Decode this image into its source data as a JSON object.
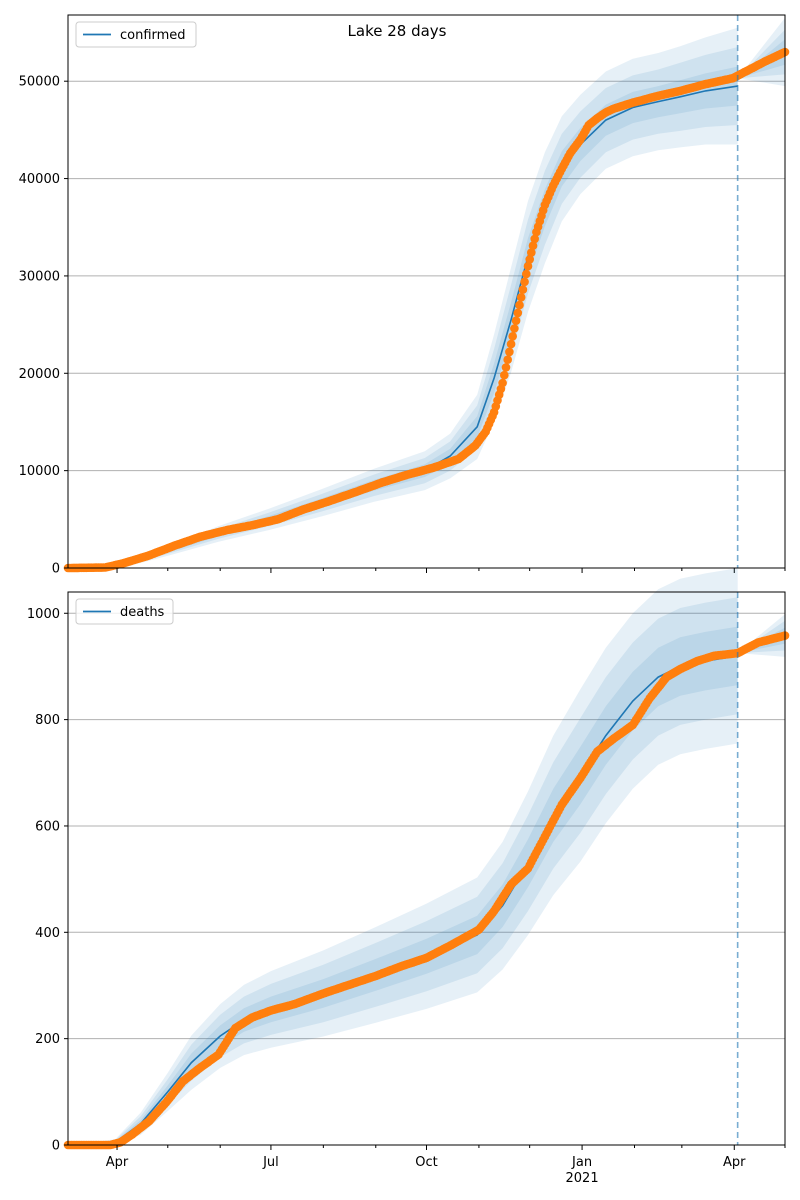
{
  "figure": {
    "title": "Lake 28 days"
  },
  "x_axis": {
    "ticks": [
      {
        "label": "Apr",
        "date": "2020-04-01"
      },
      {
        "label": "Jul",
        "date": "2020-07-01"
      },
      {
        "label": "Oct",
        "date": "2020-10-01"
      },
      {
        "label": "Jan",
        "sublabel": "2021",
        "date": "2021-01-01"
      },
      {
        "label": "Apr",
        "date": "2021-04-01"
      }
    ],
    "minor_ticks": [
      "2020-05-01",
      "2020-06-01",
      "2020-08-01",
      "2020-09-01",
      "2020-11-01",
      "2020-12-01",
      "2021-02-01",
      "2021-03-01",
      "2021-05-01"
    ],
    "range": [
      "2020-03-03",
      "2021-05-01"
    ]
  },
  "colors": {
    "model_line": "#1f77b4",
    "band": "#1f77b4",
    "observed": "#ff7f0e",
    "forecast_start_line": "#1f77b4",
    "grid": "#b0b0b0"
  },
  "chart_data": [
    {
      "type": "line",
      "legend": {
        "label": "confirmed",
        "position": "top-left"
      },
      "ylim": [
        0,
        56800
      ],
      "yticks": [
        0,
        10000,
        20000,
        30000,
        40000,
        50000
      ],
      "grid": "y",
      "forecast_start": "2021-04-03",
      "model": {
        "name": "confirmed",
        "x": [
          "2020-03-03",
          "2020-03-31",
          "2020-04-30",
          "2020-05-31",
          "2020-06-30",
          "2020-07-31",
          "2020-08-31",
          "2020-09-30",
          "2020-10-15",
          "2020-10-31",
          "2020-11-10",
          "2020-11-20",
          "2020-11-30",
          "2020-12-10",
          "2020-12-20",
          "2020-12-31",
          "2021-01-15",
          "2021-01-31",
          "2021-02-15",
          "2021-02-28",
          "2021-03-15",
          "2021-04-03"
        ],
        "y": [
          0,
          150,
          1700,
          3500,
          5000,
          6700,
          8500,
          10000,
          11500,
          14500,
          19500,
          25500,
          32000,
          37000,
          41000,
          43500,
          46000,
          47300,
          47900,
          48400,
          49000,
          49500
        ],
        "band_halfwidths": [
          [
            0,
            100,
            150,
            250,
            350,
            450,
            550,
            650,
            750,
            1100,
            1500,
            1800,
            1900,
            1900,
            1800,
            1700,
            1600,
            1600,
            1600,
            1700,
            1800,
            2000
          ],
          [
            0,
            200,
            300,
            500,
            700,
            900,
            1100,
            1300,
            1500,
            2200,
            3000,
            3600,
            3800,
            3800,
            3600,
            3400,
            3300,
            3300,
            3300,
            3500,
            3700,
            4000
          ],
          [
            0,
            300,
            500,
            800,
            1100,
            1400,
            1700,
            2000,
            2300,
            3300,
            4500,
            5400,
            5700,
            5700,
            5400,
            5100,
            5000,
            5000,
            5000,
            5200,
            5500,
            6000
          ]
        ]
      },
      "forecast": {
        "x": [
          "2021-04-03",
          "2021-05-01"
        ],
        "y": [
          50300,
          53000
        ],
        "band_halfwidths": [
          [
            0,
            1300
          ],
          [
            0,
            2300
          ],
          [
            0,
            3500
          ]
        ]
      },
      "observed": {
        "name": "observed",
        "x": [
          "2020-03-03",
          "2020-03-25",
          "2020-04-05",
          "2020-04-20",
          "2020-05-05",
          "2020-05-20",
          "2020-06-05",
          "2020-06-20",
          "2020-07-05",
          "2020-07-20",
          "2020-08-05",
          "2020-08-20",
          "2020-09-05",
          "2020-09-20",
          "2020-10-05",
          "2020-10-20",
          "2020-10-30",
          "2020-11-05",
          "2020-11-10",
          "2020-11-15",
          "2020-11-20",
          "2020-11-25",
          "2020-11-30",
          "2020-12-05",
          "2020-12-10",
          "2020-12-15",
          "2020-12-20",
          "2020-12-25",
          "2020-12-31",
          "2021-01-05",
          "2021-01-10",
          "2021-01-15",
          "2021-01-20",
          "2021-01-31",
          "2021-02-15",
          "2021-02-28",
          "2021-03-15",
          "2021-03-31",
          "2021-04-10",
          "2021-04-20",
          "2021-05-01"
        ],
        "y": [
          0,
          50,
          500,
          1300,
          2300,
          3200,
          3900,
          4400,
          5000,
          6000,
          6900,
          7800,
          8800,
          9600,
          10300,
          11200,
          12600,
          14000,
          16000,
          19000,
          23000,
          27000,
          31000,
          34500,
          37300,
          39300,
          41000,
          42600,
          44000,
          45500,
          46200,
          46800,
          47200,
          47800,
          48500,
          49000,
          49700,
          50300,
          51200,
          52100,
          53000
        ]
      }
    },
    {
      "type": "line",
      "legend": {
        "label": "deaths",
        "position": "top-left"
      },
      "ylim": [
        0,
        1040
      ],
      "yticks": [
        0,
        200,
        400,
        600,
        800,
        1000
      ],
      "grid": "y",
      "forecast_start": "2021-04-03",
      "model": {
        "name": "deaths",
        "x": [
          "2020-03-03",
          "2020-03-31",
          "2020-04-15",
          "2020-05-01",
          "2020-05-15",
          "2020-06-01",
          "2020-06-15",
          "2020-07-01",
          "2020-08-01",
          "2020-09-01",
          "2020-10-01",
          "2020-10-31",
          "2020-11-15",
          "2020-11-30",
          "2020-12-15",
          "2020-12-31",
          "2021-01-15",
          "2021-01-31",
          "2021-02-15",
          "2021-02-28",
          "2021-03-15",
          "2021-04-03"
        ],
        "y": [
          0,
          5,
          40,
          100,
          155,
          205,
          235,
          255,
          285,
          320,
          355,
          395,
          450,
          530,
          620,
          695,
          770,
          835,
          880,
          900,
          910,
          920
        ],
        "band_halfwidths": [
          [
            0,
            2,
            7,
            12,
            17,
            20,
            22,
            24,
            27,
            30,
            33,
            36,
            40,
            45,
            50,
            54,
            55,
            55,
            55,
            55,
            55,
            55
          ],
          [
            0,
            4,
            14,
            24,
            34,
            40,
            44,
            48,
            54,
            60,
            66,
            72,
            80,
            90,
            100,
            108,
            110,
            110,
            110,
            110,
            110,
            110
          ],
          [
            0,
            6,
            21,
            36,
            51,
            60,
            66,
            72,
            81,
            90,
            99,
            108,
            120,
            135,
            150,
            162,
            165,
            165,
            165,
            165,
            165,
            165
          ]
        ]
      },
      "forecast": {
        "x": [
          "2021-04-03",
          "2021-05-01"
        ],
        "y": [
          925,
          958
        ],
        "band_halfwidths": [
          [
            0,
            15
          ],
          [
            0,
            28
          ],
          [
            0,
            40
          ]
        ]
      },
      "observed": {
        "name": "observed",
        "x": [
          "2020-03-03",
          "2020-03-28",
          "2020-04-03",
          "2020-04-10",
          "2020-04-20",
          "2020-04-30",
          "2020-05-10",
          "2020-05-20",
          "2020-05-31",
          "2020-06-10",
          "2020-06-20",
          "2020-07-01",
          "2020-07-15",
          "2020-08-01",
          "2020-08-15",
          "2020-09-01",
          "2020-09-15",
          "2020-10-01",
          "2020-10-15",
          "2020-11-01",
          "2020-11-10",
          "2020-11-20",
          "2020-11-30",
          "2020-12-10",
          "2020-12-20",
          "2020-12-31",
          "2021-01-10",
          "2021-01-20",
          "2021-01-31",
          "2021-02-10",
          "2021-02-20",
          "2021-02-28",
          "2021-03-10",
          "2021-03-20",
          "2021-04-03",
          "2021-04-15",
          "2021-05-01"
        ],
        "y": [
          0,
          0,
          5,
          20,
          45,
          80,
          120,
          145,
          170,
          220,
          240,
          253,
          265,
          285,
          300,
          318,
          335,
          352,
          375,
          405,
          440,
          490,
          520,
          580,
          640,
          690,
          740,
          765,
          790,
          840,
          880,
          895,
          910,
          920,
          925,
          945,
          958
        ]
      }
    }
  ]
}
